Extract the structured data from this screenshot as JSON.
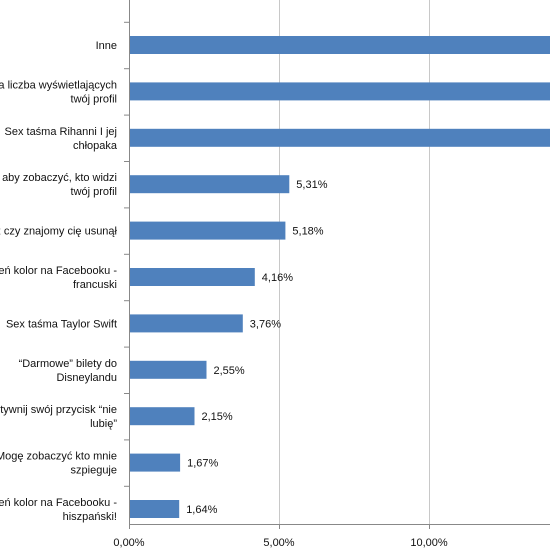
{
  "chart_data": {
    "type": "bar",
    "orientation": "horizontal",
    "categories": [
      "Inne",
      "a liczba wyświetlających twój profil",
      "Sex taśma Rihanni I jej chłopaka",
      "aby zobaczyć, kto widzi twój profil",
      "ż czy znajomy cię usunął",
      "eń kolor na Facebooku - francuski",
      "Sex taśma Taylor Swift",
      "“Darmowe” bilety do Disneylandu",
      "tywnij swój przycisk “nie lubię”",
      "Mogę zobaczyć kto mnie szpieguje",
      "eń kolor na Facebooku - hiszpański!"
    ],
    "category_lines": [
      [
        "Inne"
      ],
      [
        "a liczba wyświetlających",
        "twój profil"
      ],
      [
        "Sex taśma Rihanni I jej",
        "chłopaka"
      ],
      [
        "aby zobaczyć, kto widzi",
        "twój profil"
      ],
      [
        "ż czy znajomy cię usunął"
      ],
      [
        "eń kolor na Facebooku -",
        "francuski"
      ],
      [
        "Sex taśma Taylor Swift"
      ],
      [
        "“Darmowe” bilety do",
        "Disneylandu"
      ],
      [
        "tywnij swój przycisk “nie",
        "lubię”"
      ],
      [
        "Mogę zobaczyć kto mnie",
        "szpieguje"
      ],
      [
        "eń kolor na Facebooku -",
        "hiszpański!"
      ]
    ],
    "values": [
      14.2,
      14.2,
      14.2,
      5.31,
      5.18,
      4.16,
      3.76,
      2.55,
      2.15,
      1.67,
      1.64
    ],
    "value_labels": [
      "",
      "",
      "",
      "5,31%",
      "5,18%",
      "4,16%",
      "3,76%",
      "2,55%",
      "2,15%",
      "1,67%",
      "1,64%"
    ],
    "x_ticks": [
      0,
      5,
      10
    ],
    "x_tick_labels": [
      "0,00%",
      "5,00%",
      "10,00%"
    ],
    "xlim": [
      0,
      14.2
    ],
    "grid": true,
    "title": "",
    "xlabel": "",
    "ylabel": "",
    "bar_color": "#4F81BD",
    "grid_color": "#C8C8C8",
    "text_color": "#111111"
  }
}
